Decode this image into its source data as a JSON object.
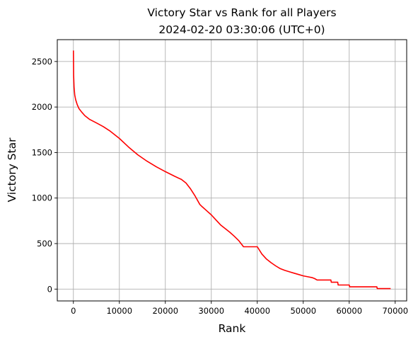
{
  "chart_data": {
    "type": "line",
    "title": "Victory Star vs Rank for all Players",
    "subtitle": "2024-02-20 03:30:06 (UTC+0)",
    "xlabel": "Rank",
    "ylabel": "Victory Star",
    "xlim": [
      -3500,
      72500
    ],
    "ylim": [
      -130,
      2740
    ],
    "xticks": [
      0,
      10000,
      20000,
      30000,
      40000,
      50000,
      60000,
      70000
    ],
    "yticks": [
      0,
      500,
      1000,
      1500,
      2000,
      2500
    ],
    "grid": true,
    "series": [
      {
        "color": "#ff0000",
        "x": [
          0,
          50,
          150,
          300,
          500,
          800,
          1200,
          1800,
          2500,
          3500,
          5000,
          6500,
          8000,
          10000,
          12000,
          14000,
          16000,
          18000,
          20000,
          22000,
          23500,
          24500,
          25500,
          26500,
          27500,
          28000,
          29000,
          30000,
          31000,
          32000,
          33000,
          34000,
          35000,
          36000,
          37000,
          40000,
          41000,
          42000,
          43000,
          44000,
          45000,
          46000,
          47000,
          48000,
          49000,
          50000,
          51000,
          52000,
          52500,
          53000,
          56000,
          56100,
          57500,
          57600,
          60000,
          60100,
          66000,
          66100,
          69000
        ],
        "y": [
          2620,
          2350,
          2220,
          2130,
          2080,
          2030,
          1985,
          1945,
          1905,
          1865,
          1825,
          1785,
          1735,
          1655,
          1560,
          1475,
          1405,
          1345,
          1290,
          1240,
          1205,
          1165,
          1100,
          1020,
          930,
          905,
          860,
          815,
          760,
          705,
          665,
          625,
          580,
          530,
          465,
          465,
          385,
          330,
          290,
          255,
          225,
          205,
          190,
          175,
          160,
          145,
          135,
          125,
          115,
          100,
          100,
          75,
          75,
          45,
          45,
          25,
          25,
          5,
          5
        ]
      }
    ]
  }
}
